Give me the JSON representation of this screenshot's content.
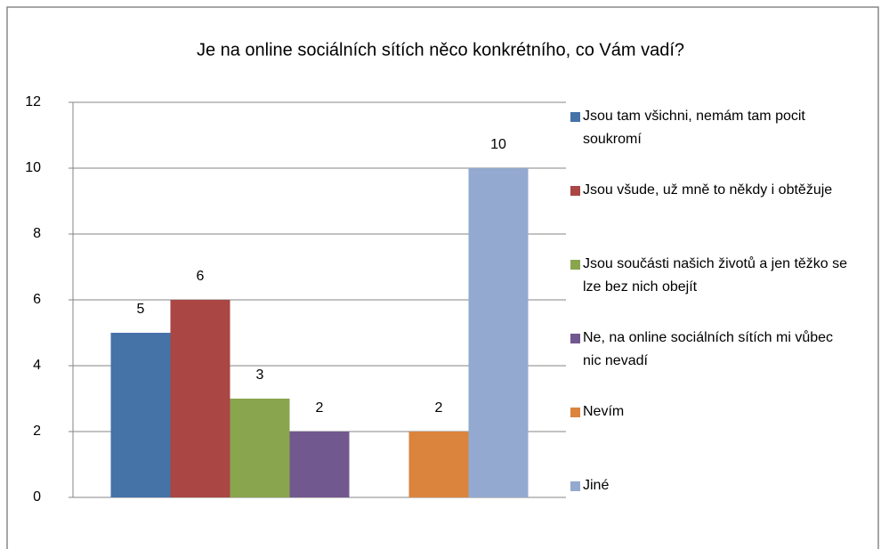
{
  "chart_data": {
    "type": "bar",
    "title": "Je na online sociálních sítích něco konkrétního, co Vám vadí?",
    "categories": [
      null
    ],
    "series": [
      {
        "name": "Jsou tam všichni, nemám tam pocit soukromí",
        "color": "#4572a7",
        "values": [
          5
        ]
      },
      {
        "name": "Jsou všude, už mně to někdy i obtěžuje",
        "color": "#aa4643",
        "values": [
          6
        ]
      },
      {
        "name": "Jsou součásti našich životů a jen těžko se lze bez nich obejít",
        "color": "#89a54e",
        "values": [
          3
        ]
      },
      {
        "name": "Ne, na online sociálních sítích mi vůbec nic nevadí",
        "color": "#71588f",
        "values": [
          2
        ]
      },
      {
        "name": "Nevím",
        "color": "#db843d",
        "values": [
          2
        ]
      },
      {
        "name": "Jiné",
        "color": "#93a9cf",
        "values": [
          10
        ]
      }
    ],
    "ylim": [
      0,
      12
    ],
    "yticks": [
      0,
      2,
      4,
      6,
      8,
      10,
      12
    ],
    "grid": true,
    "legend": "right"
  }
}
